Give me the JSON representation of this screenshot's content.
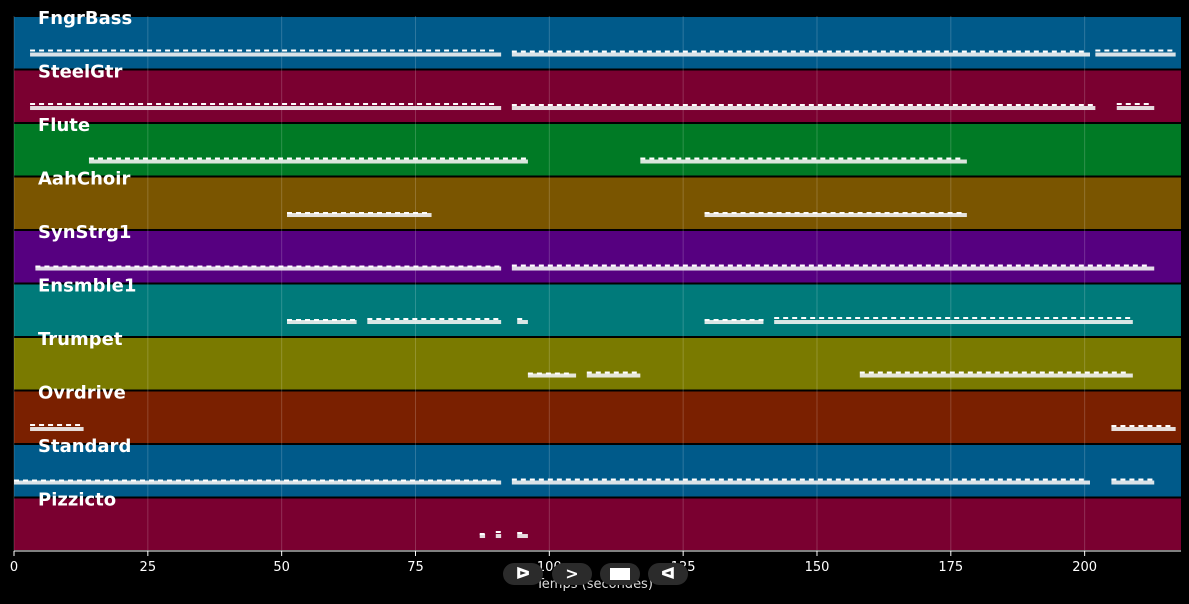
{
  "chart_data": {
    "type": "piano-roll",
    "xlabel": "Temps (secondes)",
    "xlim": [
      0,
      218
    ],
    "xticks": [
      0,
      25,
      50,
      75,
      100,
      125,
      150,
      175,
      200
    ],
    "grid": true,
    "tracks": [
      {
        "name": "FngrBass",
        "color": "#005a8a",
        "segments": [
          [
            3,
            91
          ],
          [
            93,
            201
          ],
          [
            202,
            217
          ]
        ]
      },
      {
        "name": "SteelGtr",
        "color": "#7a0030",
        "segments": [
          [
            3,
            91
          ],
          [
            93,
            202
          ],
          [
            206,
            213
          ]
        ]
      },
      {
        "name": "Flute",
        "color": "#007a25",
        "segments": [
          [
            14,
            96
          ],
          [
            117,
            178
          ]
        ]
      },
      {
        "name": "AahChoir",
        "color": "#7a5500",
        "segments": [
          [
            51,
            78
          ],
          [
            129,
            178
          ]
        ]
      },
      {
        "name": "SynStrg1",
        "color": "#560080",
        "segments": [
          [
            4,
            91
          ],
          [
            93,
            213
          ]
        ]
      },
      {
        "name": "Ensmble1",
        "color": "#007a7a",
        "segments": [
          [
            51,
            64
          ],
          [
            66,
            91
          ],
          [
            94,
            96
          ],
          [
            129,
            140
          ],
          [
            142,
            209
          ]
        ]
      },
      {
        "name": "Trumpet",
        "color": "#7a7a00",
        "segments": [
          [
            96,
            105
          ],
          [
            107,
            117
          ],
          [
            158,
            209
          ]
        ]
      },
      {
        "name": "Ovrdrive",
        "color": "#7a2000",
        "segments": [
          [
            3,
            13
          ],
          [
            205,
            217
          ]
        ]
      },
      {
        "name": "Standard",
        "color": "#005a8a",
        "segments": [
          [
            0,
            91
          ],
          [
            93,
            201
          ],
          [
            205,
            213
          ]
        ]
      },
      {
        "name": "Pizzicto",
        "color": "#7a0030",
        "segments": [
          [
            87,
            88
          ],
          [
            90,
            91
          ],
          [
            94,
            96
          ]
        ]
      }
    ]
  },
  "controls": {
    "rewind_label": "ᐅ",
    "play_label": ">",
    "stop_label": "stop",
    "back_label": "ᐊ"
  }
}
